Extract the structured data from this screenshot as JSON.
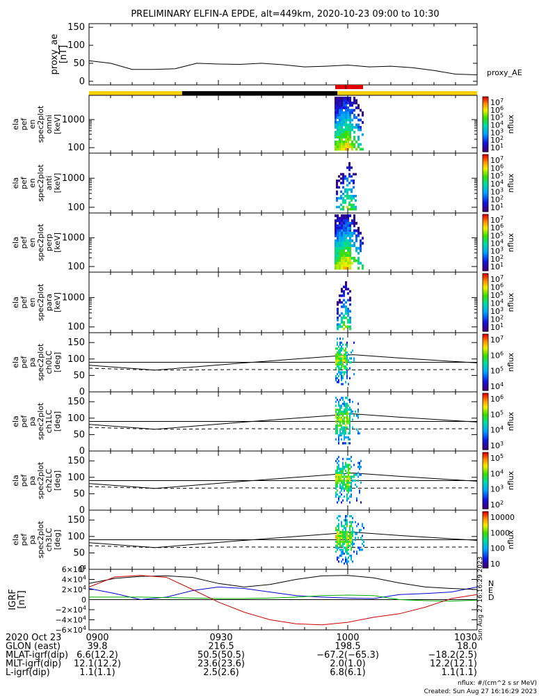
{
  "title": "PRELIMINARY ELFIN-A EPDE, alt=449km, 2020-10-23 09:00 to 10:30",
  "chart_data": [
    {
      "type": "line",
      "panel": "proxy_ae",
      "ylabel": [
        "proxy_ae",
        "[nT]"
      ],
      "yticks": [
        "150",
        "100",
        "50",
        "0"
      ],
      "ylim": [
        -10,
        160
      ],
      "series_label": "proxy_AE",
      "x_min": [
        0,
        5,
        10,
        15,
        20,
        25,
        30,
        35,
        40,
        45,
        50,
        55,
        60,
        65,
        70,
        75,
        80,
        85,
        90
      ],
      "values": [
        57,
        50,
        33,
        33,
        35,
        50,
        48,
        47,
        50,
        46,
        40,
        42,
        45,
        40,
        42,
        38,
        30,
        20,
        18
      ]
    },
    {
      "type": "heatmap",
      "panel": "spec omni",
      "ylabel": [
        "ela",
        "pef",
        "en",
        "spec2plot",
        "omni",
        "[keV]"
      ],
      "yticks": [
        "1000",
        "100"
      ],
      "cbar_ticks": [
        "10^7",
        "10^6",
        "10^5",
        "10^4",
        "10^3",
        "10^2",
        "10^1"
      ],
      "cbar_label": "nflux"
    },
    {
      "type": "heatmap",
      "panel": "spec anti",
      "ylabel": [
        "ela",
        "pef",
        "en",
        "spec2plot",
        "anti",
        "[keV]"
      ],
      "yticks": [
        "1000",
        "100"
      ],
      "cbar_ticks": [
        "10^7",
        "10^6",
        "10^5",
        "10^4",
        "10^3",
        "10^2",
        "10^1"
      ],
      "cbar_label": "nflux"
    },
    {
      "type": "heatmap",
      "panel": "spec perp",
      "ylabel": [
        "ela",
        "pef",
        "en",
        "spec2plot",
        "perp",
        "[keV]"
      ],
      "yticks": [
        "1000",
        "100"
      ],
      "cbar_ticks": [
        "10^7",
        "10^6",
        "10^5",
        "10^4",
        "10^3",
        "10^2",
        "10^1"
      ],
      "cbar_label": "nflux"
    },
    {
      "type": "heatmap",
      "panel": "spec para",
      "ylabel": [
        "ela",
        "pef",
        "en",
        "spec2plot",
        "para",
        "[keV]"
      ],
      "yticks": [
        "1000",
        "100"
      ],
      "cbar_ticks": [
        "10^7",
        "10^6",
        "10^5",
        "10^4",
        "10^3",
        "10^2",
        "10^1"
      ],
      "cbar_label": "nflux"
    },
    {
      "type": "heatmap",
      "panel": "pa ch0LC",
      "ylabel": [
        "ela",
        "pef",
        "pa",
        "spec2plot",
        "ch0LC",
        "[deg]"
      ],
      "yticks": [
        "150",
        "100",
        "50",
        "0"
      ],
      "cbar_ticks": [
        "10^7",
        "10^6",
        "10^5",
        "10^4"
      ],
      "cbar_label": "nflux"
    },
    {
      "type": "heatmap",
      "panel": "pa ch1LC",
      "ylabel": [
        "ela",
        "pef",
        "pa",
        "spec2plot",
        "ch1LC",
        "[deg]"
      ],
      "yticks": [
        "150",
        "100",
        "50",
        "0"
      ],
      "cbar_ticks": [
        "10^6",
        "10^5",
        "10^4",
        "10^3"
      ],
      "cbar_label": "nflux"
    },
    {
      "type": "heatmap",
      "panel": "pa ch2LC",
      "ylabel": [
        "ela",
        "pef",
        "pa",
        "spec2plot",
        "ch2LC",
        "[deg]"
      ],
      "yticks": [
        "150",
        "100",
        "50",
        "0"
      ],
      "cbar_ticks": [
        "10^5",
        "10^4",
        "10^3",
        "10^2"
      ],
      "cbar_label": "nflux"
    },
    {
      "type": "heatmap",
      "panel": "pa ch3LC",
      "ylabel": [
        "ela",
        "pef",
        "pa",
        "spec2plot",
        "ch3LC",
        "[deg]"
      ],
      "yticks": [
        "150",
        "100",
        "50",
        "0"
      ],
      "cbar_ticks": [
        "10000",
        "1000",
        "100",
        "10"
      ],
      "cbar_label": "nflux"
    },
    {
      "type": "line",
      "panel": "IGRF",
      "ylabel": [
        "IGRF",
        "[nT]"
      ],
      "yticks": [
        "6×10^4",
        "4×10^4",
        "2×10^4",
        "0",
        "−2×10^4",
        "−4×10^4",
        "−6×10^4"
      ],
      "ylim": [
        -60000,
        60000
      ],
      "series": [
        {
          "name": "N",
          "color": "#000000",
          "values": [
            32000,
            42000,
            46000,
            47000,
            44000,
            32000,
            25000,
            30000,
            40000,
            47000,
            48000,
            43000,
            33000,
            25000,
            22000,
            20000
          ]
        },
        {
          "name": "E",
          "color": "#00b000",
          "values": [
            5000,
            5000,
            5000,
            4000,
            3000,
            2000,
            2000,
            3000,
            5000,
            8000,
            9000,
            8000,
            0,
            -2000,
            -3000,
            -1000
          ]
        },
        {
          "name": "D",
          "color": "#d00000",
          "values": [
            25000,
            45000,
            48000,
            44000,
            20000,
            -5000,
            -25000,
            -40000,
            -48000,
            -50000,
            -45000,
            -35000,
            -28000,
            -15000,
            2000,
            10000
          ]
        }
      ],
      "blue_series": {
        "color": "#0000d0",
        "values": [
          22000,
          12000,
          0,
          5000,
          18000,
          25000,
          22000,
          15000,
          8000,
          5000,
          3000,
          2000,
          10000,
          12000,
          15000,
          25000
        ]
      }
    }
  ],
  "xticks": [
    "0900",
    "0930",
    "1000",
    "1030"
  ],
  "footer_rows": [
    {
      "label": "2020 Oct 23",
      "vals": [
        "0900",
        "0930",
        "1000",
        "1030"
      ]
    },
    {
      "label": "GLON (east)",
      "vals": [
        "39.8",
        "216.5",
        "198.5",
        "18.0"
      ]
    },
    {
      "label": "MLAT-igrf(dip)",
      "vals": [
        "6.6(12.2)",
        "50.5(50.5)",
        "−67.2(−65.3)",
        "−18.2(2.5)"
      ]
    },
    {
      "label": "MLT-igrf(dip)",
      "vals": [
        "12.1(12.2)",
        "23.6(23.6)",
        "2.0(1.0)",
        "12.2(12.1)"
      ]
    },
    {
      "label": "L-igrf(dip)",
      "vals": [
        "1.1(1.1)",
        "2.5(2.6)",
        "6.8(6.1)",
        "1.1(1.1)"
      ]
    }
  ],
  "footnote_units": "nflux: #/(cm^2 s sr MeV)",
  "footnote_created": "Created: Sun Aug 27 16:16:29 2023",
  "side_stamp": "Sun Aug 27 16:16:29 2023",
  "igrf_legend": [
    "N",
    "E",
    "D"
  ],
  "proxy_label": "proxy_AE",
  "colors": {
    "sunlit": "#f7d000",
    "eclipse": "#000000",
    "science": "#e00000"
  }
}
